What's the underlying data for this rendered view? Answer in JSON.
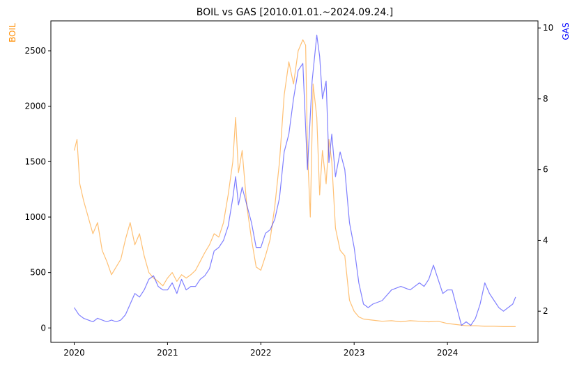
{
  "chart_data": {
    "type": "line",
    "title": "BOIL vs GAS [2010.01.01.~2024.09.24.]",
    "ylabel_left": "BOIL",
    "ylabel_right": "GAS",
    "x_ticks": [
      "2020",
      "2021",
      "2022",
      "2023",
      "2024"
    ],
    "y_left_ticks": [
      "0",
      "500",
      "1000",
      "1500",
      "2000",
      "2500"
    ],
    "y_right_ticks": [
      "2",
      "4",
      "6",
      "8",
      "10"
    ],
    "x_range": [
      2019.75,
      2024.97
    ],
    "y_left_range": [
      -130,
      2770
    ],
    "y_right_range": [
      1.12,
      10.2
    ],
    "grid": false,
    "colors": {
      "BOIL": "#ff8c00",
      "GAS": "#0000ff"
    },
    "series": [
      {
        "name": "BOIL",
        "axis": "left",
        "x": [
          2020.0,
          2020.03,
          2020.06,
          2020.1,
          2020.15,
          2020.2,
          2020.25,
          2020.3,
          2020.35,
          2020.4,
          2020.45,
          2020.5,
          2020.55,
          2020.6,
          2020.65,
          2020.7,
          2020.75,
          2020.8,
          2020.85,
          2020.9,
          2020.95,
          2021.0,
          2021.05,
          2021.1,
          2021.15,
          2021.2,
          2021.25,
          2021.3,
          2021.35,
          2021.4,
          2021.45,
          2021.5,
          2021.55,
          2021.6,
          2021.65,
          2021.7,
          2021.73,
          2021.76,
          2021.8,
          2021.85,
          2021.9,
          2021.95,
          2022.0,
          2022.05,
          2022.1,
          2022.15,
          2022.2,
          2022.25,
          2022.3,
          2022.35,
          2022.4,
          2022.45,
          2022.48,
          2022.5,
          2022.53,
          2022.56,
          2022.6,
          2022.63,
          2022.66,
          2022.7,
          2022.73,
          2022.76,
          2022.8,
          2022.85,
          2022.9,
          2022.95,
          2023.0,
          2023.05,
          2023.1,
          2023.2,
          2023.3,
          2023.4,
          2023.5,
          2023.6,
          2023.7,
          2023.8,
          2023.9,
          2024.0,
          2024.1,
          2024.2,
          2024.3,
          2024.4,
          2024.5,
          2024.6,
          2024.73
        ],
        "values": [
          1600,
          1700,
          1300,
          1150,
          1000,
          850,
          950,
          700,
          600,
          480,
          550,
          620,
          800,
          950,
          750,
          850,
          650,
          500,
          450,
          420,
          380,
          450,
          500,
          420,
          480,
          450,
          480,
          520,
          600,
          680,
          750,
          850,
          820,
          950,
          1200,
          1500,
          1900,
          1400,
          1600,
          1100,
          800,
          550,
          520,
          650,
          800,
          1100,
          1500,
          2100,
          2400,
          2200,
          2500,
          2600,
          2550,
          1600,
          1000,
          2200,
          1900,
          1200,
          1600,
          1300,
          1700,
          1500,
          900,
          700,
          650,
          250,
          150,
          100,
          80,
          70,
          60,
          65,
          55,
          65,
          60,
          55,
          60,
          40,
          30,
          20,
          20,
          15,
          15,
          12,
          12
        ]
      },
      {
        "name": "GAS",
        "axis": "right",
        "x": [
          2020.0,
          2020.05,
          2020.1,
          2020.15,
          2020.2,
          2020.25,
          2020.3,
          2020.35,
          2020.4,
          2020.45,
          2020.5,
          2020.55,
          2020.6,
          2020.65,
          2020.7,
          2020.75,
          2020.8,
          2020.85,
          2020.9,
          2020.95,
          2021.0,
          2021.05,
          2021.1,
          2021.15,
          2021.2,
          2021.25,
          2021.3,
          2021.35,
          2021.4,
          2021.45,
          2021.5,
          2021.55,
          2021.6,
          2021.65,
          2021.7,
          2021.73,
          2021.76,
          2021.8,
          2021.85,
          2021.9,
          2021.95,
          2022.0,
          2022.05,
          2022.1,
          2022.15,
          2022.2,
          2022.25,
          2022.3,
          2022.35,
          2022.4,
          2022.45,
          2022.5,
          2022.55,
          2022.6,
          2022.63,
          2022.66,
          2022.7,
          2022.73,
          2022.76,
          2022.8,
          2022.85,
          2022.9,
          2022.95,
          2023.0,
          2023.05,
          2023.1,
          2023.15,
          2023.2,
          2023.3,
          2023.4,
          2023.5,
          2023.6,
          2023.7,
          2023.75,
          2023.8,
          2023.85,
          2023.9,
          2023.95,
          2024.0,
          2024.05,
          2024.1,
          2024.15,
          2024.2,
          2024.25,
          2024.3,
          2024.35,
          2024.4,
          2024.45,
          2024.5,
          2024.55,
          2024.6,
          2024.65,
          2024.7,
          2024.73
        ],
        "values": [
          2.1,
          1.9,
          1.8,
          1.75,
          1.7,
          1.8,
          1.75,
          1.7,
          1.75,
          1.7,
          1.75,
          1.9,
          2.2,
          2.5,
          2.4,
          2.6,
          2.9,
          3.0,
          2.7,
          2.6,
          2.6,
          2.8,
          2.5,
          2.9,
          2.6,
          2.7,
          2.7,
          2.9,
          3.0,
          3.2,
          3.7,
          3.8,
          4.0,
          4.4,
          5.2,
          5.8,
          5.0,
          5.5,
          5.0,
          4.5,
          3.8,
          3.8,
          4.2,
          4.3,
          4.6,
          5.2,
          6.5,
          7.0,
          8.0,
          8.8,
          9.0,
          6.0,
          8.5,
          9.8,
          9.2,
          8.0,
          8.5,
          6.2,
          7.0,
          5.8,
          6.5,
          6.0,
          4.5,
          3.8,
          2.8,
          2.2,
          2.1,
          2.2,
          2.3,
          2.6,
          2.7,
          2.6,
          2.8,
          2.7,
          2.9,
          3.3,
          2.9,
          2.5,
          2.6,
          2.6,
          2.1,
          1.6,
          1.7,
          1.6,
          1.8,
          2.2,
          2.8,
          2.5,
          2.3,
          2.1,
          2.0,
          2.1,
          2.2,
          2.4
        ]
      }
    ]
  }
}
